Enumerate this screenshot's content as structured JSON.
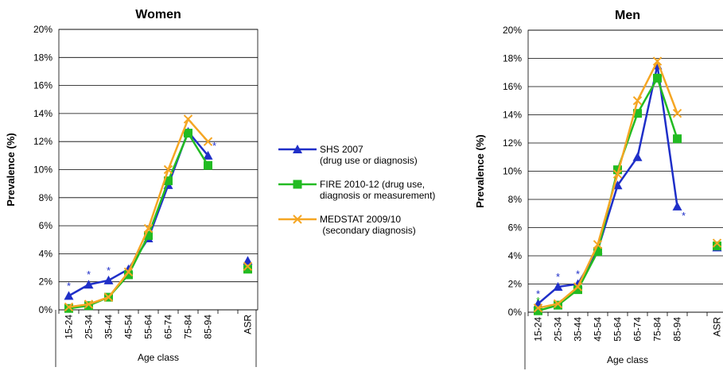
{
  "chart_data": [
    {
      "type": "line",
      "title": "Women",
      "y_label": "Prevalence (%)",
      "x_label": "Age class",
      "categories": [
        "15-24",
        "25-34",
        "35-44",
        "45-54",
        "55-64",
        "65-74",
        "75-84",
        "85-94",
        null,
        "ASR"
      ],
      "ylim": [
        0,
        20
      ],
      "yticks": [
        {
          "value": 0,
          "label": "0%"
        },
        {
          "value": 2,
          "label": "2%"
        },
        {
          "value": 4,
          "label": "4%"
        },
        {
          "value": 6,
          "label": "6%"
        },
        {
          "value": 8,
          "label": "8%"
        },
        {
          "value": 10,
          "label": "10%"
        },
        {
          "value": 12,
          "label": "12%"
        },
        {
          "value": 14,
          "label": "14%"
        },
        {
          "value": 16,
          "label": "16%"
        },
        {
          "value": 18,
          "label": "18%"
        },
        {
          "value": 20,
          "label": "20%"
        }
      ],
      "grid": true,
      "series": [
        {
          "name": "SHS 2007\n(drug use or diagnosis)",
          "color": "#1f2fc8",
          "marker": "triangle",
          "values": [
            1.0,
            1.8,
            2.1,
            2.9,
            5.1,
            8.9,
            12.7,
            11.0,
            null,
            3.5
          ]
        },
        {
          "name": "FIRE 2010-12 (drug use,\ndiagnosis or measurement)",
          "color": "#22bb22",
          "marker": "square",
          "values": [
            0.1,
            0.3,
            0.9,
            2.5,
            5.3,
            9.2,
            12.6,
            10.3,
            null,
            2.9
          ]
        },
        {
          "name": "MEDSTAT 2009/10\n (secondary diagnosis)",
          "color": "#f5a623",
          "marker": "x",
          "values": [
            0.2,
            0.4,
            0.9,
            2.7,
            5.8,
            10.0,
            13.6,
            12.0,
            null,
            3.1
          ]
        }
      ],
      "annotations": [
        {
          "text": "*",
          "category": "15-24",
          "color": "#1f2fc8",
          "position": "above"
        },
        {
          "text": "*",
          "category": "25-34",
          "color": "#1f2fc8",
          "position": "above"
        },
        {
          "text": "*",
          "category": "35-44",
          "color": "#1f2fc8",
          "position": "above"
        },
        {
          "text": "*",
          "category": "85-94",
          "color": "#1f2fc8",
          "position": "above"
        }
      ]
    },
    {
      "type": "line",
      "title": "Men",
      "y_label": "Prevalence (%)",
      "x_label": "Age class",
      "categories": [
        "15-24",
        "25-34",
        "35-44",
        "45-54",
        "55-64",
        "65-74",
        "75-84",
        "85-94",
        null,
        "ASR"
      ],
      "ylim": [
        0,
        20
      ],
      "yticks": [
        {
          "value": 0,
          "label": "0%"
        },
        {
          "value": 2,
          "label": "2%"
        },
        {
          "value": 4,
          "label": "4%"
        },
        {
          "value": 6,
          "label": "6%"
        },
        {
          "value": 8,
          "label": "8%"
        },
        {
          "value": 10,
          "label": "10%"
        },
        {
          "value": 12,
          "label": "12%"
        },
        {
          "value": 14,
          "label": "14%"
        },
        {
          "value": 16,
          "label": "16%"
        },
        {
          "value": 18,
          "label": "18%"
        },
        {
          "value": 20,
          "label": "20%"
        }
      ],
      "grid": true,
      "series": [
        {
          "color": "#1f2fc8",
          "marker": "triangle",
          "values": [
            0.6,
            1.8,
            2.0,
            4.4,
            9.0,
            11.0,
            17.5,
            7.5,
            null,
            4.6
          ]
        },
        {
          "color": "#22bb22",
          "marker": "square",
          "values": [
            0.1,
            0.5,
            1.6,
            4.3,
            10.1,
            14.1,
            16.6,
            12.3,
            null,
            4.7
          ]
        },
        {
          "color": "#f5a623",
          "marker": "x",
          "values": [
            0.3,
            0.6,
            1.8,
            4.8,
            9.8,
            15.0,
            17.8,
            14.1,
            null,
            4.9
          ]
        }
      ],
      "annotations": [
        {
          "text": "*",
          "category": "15-24",
          "color": "#1f2fc8",
          "position": "above"
        },
        {
          "text": "*",
          "category": "15-24",
          "color": "#22bb22",
          "position": "above"
        },
        {
          "text": "*",
          "category": "25-34",
          "color": "#1f2fc8",
          "position": "above"
        },
        {
          "text": "*",
          "category": "35-44",
          "color": "#1f2fc8",
          "position": "above"
        },
        {
          "text": "*",
          "category": "85-94",
          "color": "#1f2fc8",
          "position": "below"
        }
      ]
    }
  ]
}
